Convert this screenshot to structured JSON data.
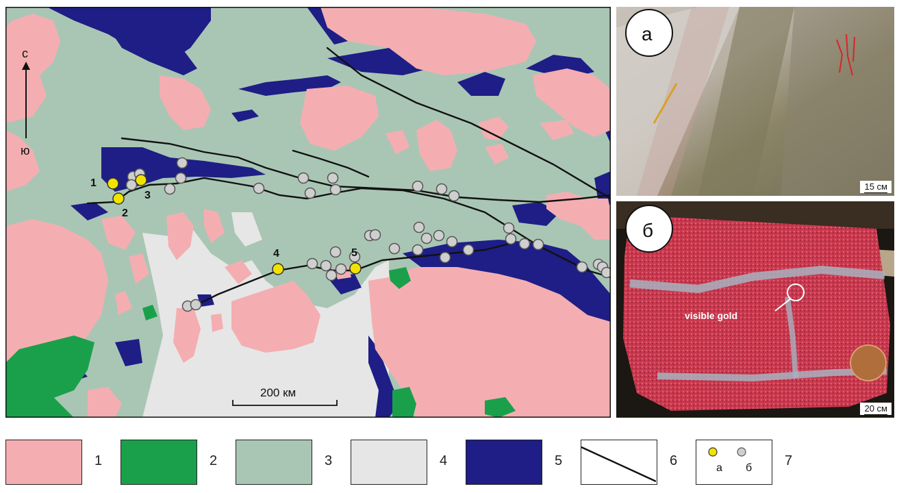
{
  "map": {
    "north_label": "с",
    "south_label": "ю",
    "scale_label": "200 км",
    "site_labels": [
      "1",
      "2",
      "3",
      "4",
      "5"
    ],
    "colors": {
      "unit_1": "#f4aeb1",
      "unit_2": "#1aa04b",
      "unit_3": "#a9c6b4",
      "unit_4": "#e6e6e6",
      "unit_5": "#1e1e86",
      "fault": "#111111",
      "site_yellow": "#f2e200",
      "site_grey": "#cfcfcf"
    }
  },
  "photo_a": {
    "panel_letter": "а",
    "scale_label": "15 см"
  },
  "photo_b": {
    "panel_letter": "б",
    "scale_label": "20 см",
    "annotation": "visible gold"
  },
  "legend": {
    "items": [
      {
        "number": "1",
        "color": "#f4aeb1",
        "kind": "fill"
      },
      {
        "number": "2",
        "color": "#1aa04b",
        "kind": "fill"
      },
      {
        "number": "3",
        "color": "#a9c6b4",
        "kind": "fill"
      },
      {
        "number": "4",
        "color": "#e6e6e6",
        "kind": "fill"
      },
      {
        "number": "5",
        "color": "#1e1e86",
        "kind": "fill"
      },
      {
        "number": "6",
        "color": "#ffffff",
        "kind": "line"
      },
      {
        "number": "7",
        "color": "#ffffff",
        "kind": "points"
      }
    ],
    "point_labels": [
      "а",
      "б"
    ]
  }
}
